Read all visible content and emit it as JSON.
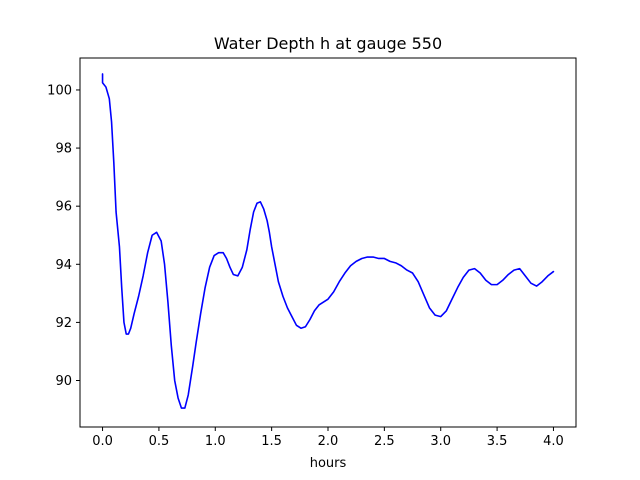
{
  "chart_data": {
    "type": "line",
    "title": "Water Depth h at gauge 550",
    "xlabel": "hours",
    "ylabel": "",
    "xlim": [
      -0.2,
      4.2
    ],
    "ylim": [
      88.4,
      101.1
    ],
    "xticks": [
      0.0,
      0.5,
      1.0,
      1.5,
      2.0,
      2.5,
      3.0,
      3.5,
      4.0
    ],
    "xtick_labels": [
      "0.0",
      "0.5",
      "1.0",
      "1.5",
      "2.0",
      "2.5",
      "3.0",
      "3.5",
      "4.0"
    ],
    "yticks": [
      90,
      92,
      94,
      96,
      98,
      100
    ],
    "ytick_labels": [
      "90",
      "92",
      "94",
      "96",
      "98",
      "100"
    ],
    "grid": false,
    "series": [
      {
        "color": "#0000ff",
        "x": [
          0.0,
          0.0,
          0.0,
          0.03,
          0.06,
          0.08,
          0.1,
          0.12,
          0.15,
          0.17,
          0.19,
          0.21,
          0.23,
          0.25,
          0.28,
          0.32,
          0.36,
          0.4,
          0.44,
          0.48,
          0.52,
          0.55,
          0.58,
          0.61,
          0.64,
          0.67,
          0.7,
          0.73,
          0.76,
          0.78,
          0.8,
          0.83,
          0.87,
          0.91,
          0.95,
          0.99,
          1.03,
          1.07,
          1.1,
          1.13,
          1.16,
          1.2,
          1.24,
          1.28,
          1.31,
          1.34,
          1.37,
          1.4,
          1.43,
          1.46,
          1.48,
          1.5,
          1.53,
          1.56,
          1.6,
          1.64,
          1.68,
          1.72,
          1.76,
          1.8,
          1.84,
          1.88,
          1.92,
          1.96,
          2.0,
          2.05,
          2.1,
          2.15,
          2.2,
          2.25,
          2.3,
          2.35,
          2.4,
          2.45,
          2.5,
          2.55,
          2.6,
          2.65,
          2.7,
          2.75,
          2.8,
          2.85,
          2.9,
          2.95,
          3.0,
          3.05,
          3.1,
          3.15,
          3.2,
          3.25,
          3.3,
          3.35,
          3.4,
          3.45,
          3.5,
          3.55,
          3.6,
          3.65,
          3.7,
          3.75,
          3.8,
          3.85,
          3.9,
          3.95,
          4.0
        ],
        "y": [
          100.55,
          100.3,
          100.25,
          100.1,
          99.7,
          98.9,
          97.5,
          95.8,
          94.6,
          93.2,
          92.0,
          91.6,
          91.6,
          91.8,
          92.3,
          92.9,
          93.6,
          94.4,
          95.0,
          95.1,
          94.8,
          94.0,
          92.7,
          91.2,
          90.0,
          89.4,
          89.05,
          89.05,
          89.5,
          90.0,
          90.5,
          91.3,
          92.3,
          93.2,
          93.9,
          94.3,
          94.4,
          94.4,
          94.2,
          93.9,
          93.65,
          93.6,
          93.9,
          94.5,
          95.2,
          95.8,
          96.1,
          96.15,
          95.9,
          95.5,
          95.1,
          94.6,
          94.0,
          93.4,
          92.9,
          92.5,
          92.2,
          91.9,
          91.8,
          91.85,
          92.1,
          92.4,
          92.6,
          92.7,
          92.8,
          93.05,
          93.4,
          93.7,
          93.95,
          94.1,
          94.2,
          94.25,
          94.25,
          94.2,
          94.2,
          94.1,
          94.05,
          93.95,
          93.8,
          93.7,
          93.4,
          92.95,
          92.5,
          92.25,
          92.2,
          92.4,
          92.8,
          93.2,
          93.55,
          93.8,
          93.85,
          93.7,
          93.45,
          93.3,
          93.3,
          93.45,
          93.65,
          93.8,
          93.85,
          93.6,
          93.35,
          93.25,
          93.4,
          93.6,
          93.75
        ]
      }
    ]
  }
}
